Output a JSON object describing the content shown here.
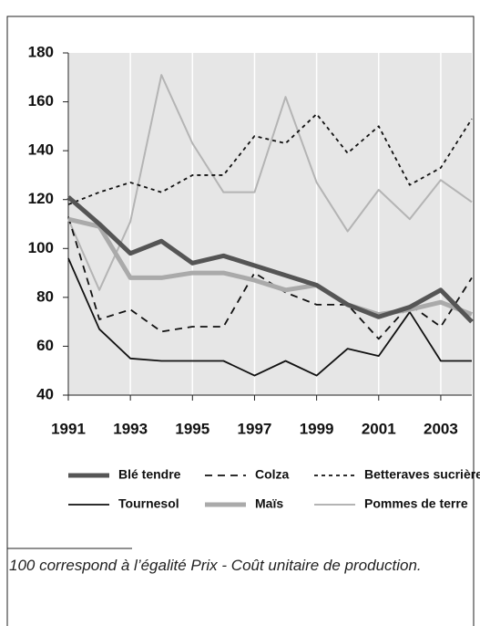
{
  "chart_data": {
    "type": "line",
    "x": [
      1991,
      1992,
      1993,
      1994,
      1995,
      1996,
      1997,
      1998,
      1999,
      2000,
      2001,
      2002,
      2003,
      2004
    ],
    "xlim": [
      1991,
      2004
    ],
    "xticks": [
      1991,
      1993,
      1995,
      1997,
      1999,
      2001,
      2003
    ],
    "ylim": [
      40,
      180
    ],
    "yticks": [
      40,
      60,
      80,
      100,
      120,
      140,
      160,
      180
    ],
    "grid": true,
    "series": [
      {
        "name": "Blé tendre",
        "color": "#555555",
        "values": [
          121,
          110,
          98,
          103,
          94,
          97,
          93,
          89,
          85,
          77,
          72,
          76,
          83,
          70
        ]
      },
      {
        "name": "Colza",
        "color": "#111111",
        "values": [
          113,
          71,
          75,
          66,
          68,
          68,
          90,
          82,
          77,
          77,
          63,
          77,
          68,
          88
        ]
      },
      {
        "name": "Betteraves sucrières",
        "color": "#111111",
        "values": [
          118,
          123,
          127,
          123,
          130,
          130,
          146,
          143,
          155,
          139,
          150,
          126,
          133,
          153
        ]
      },
      {
        "name": "Tournesol",
        "color": "#111111",
        "values": [
          96,
          67,
          55,
          54,
          54,
          54,
          48,
          54,
          48,
          59,
          56,
          74,
          54,
          54
        ]
      },
      {
        "name": "Maïs",
        "color": "#aaaaaa",
        "values": [
          112,
          109,
          88,
          88,
          90,
          90,
          87,
          83,
          85,
          77,
          73,
          75,
          78,
          73
        ]
      },
      {
        "name": "Pommes de terre",
        "color": "#b4b4b4",
        "values": [
          112,
          83,
          111,
          171,
          143,
          123,
          123,
          162,
          127,
          107,
          124,
          112,
          128,
          119
        ]
      }
    ],
    "footnote": "100 correspond à l’égalité Prix - Coût unitaire de production."
  }
}
